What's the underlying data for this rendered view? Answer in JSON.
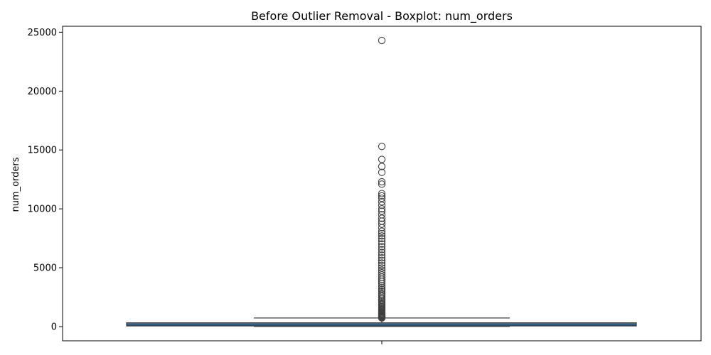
{
  "chart_data": {
    "type": "boxplot",
    "title": "Before Outlier Removal - Boxplot: num_orders",
    "xlabel": "",
    "ylabel": "num_orders",
    "ylim": [
      -1500,
      26000
    ],
    "yticks": [
      0,
      5000,
      10000,
      15000,
      20000,
      25000
    ],
    "grid": false,
    "legend": "none",
    "colors": {
      "box_fill": "#3574a8",
      "line": "#3f3f3f",
      "outlier_edge": "#3f3f3f"
    },
    "box": {
      "whisker_low": 13,
      "q1": 54,
      "median": 136,
      "q3": 324,
      "whisker_high": 729
    },
    "outliers": [
      730,
      760,
      790,
      820,
      860,
      900,
      950,
      1000,
      1060,
      1120,
      1190,
      1260,
      1340,
      1420,
      1500,
      1590,
      1680,
      1780,
      1880,
      1990,
      2100,
      2220,
      2340,
      2470,
      2600,
      2740,
      2880,
      3030,
      3180,
      3340,
      3500,
      3670,
      3840,
      4020,
      4200,
      4390,
      4580,
      4780,
      4980,
      5190,
      5400,
      5620,
      5840,
      6070,
      6300,
      6540,
      6780,
      7020,
      7250,
      7480,
      7700,
      7900,
      8100,
      8400,
      8700,
      8950,
      9200,
      9500,
      9800,
      10000,
      10300,
      10600,
      10900,
      11100,
      11300,
      12100,
      12300,
      13100,
      13600,
      14200,
      15300,
      24300
    ]
  }
}
